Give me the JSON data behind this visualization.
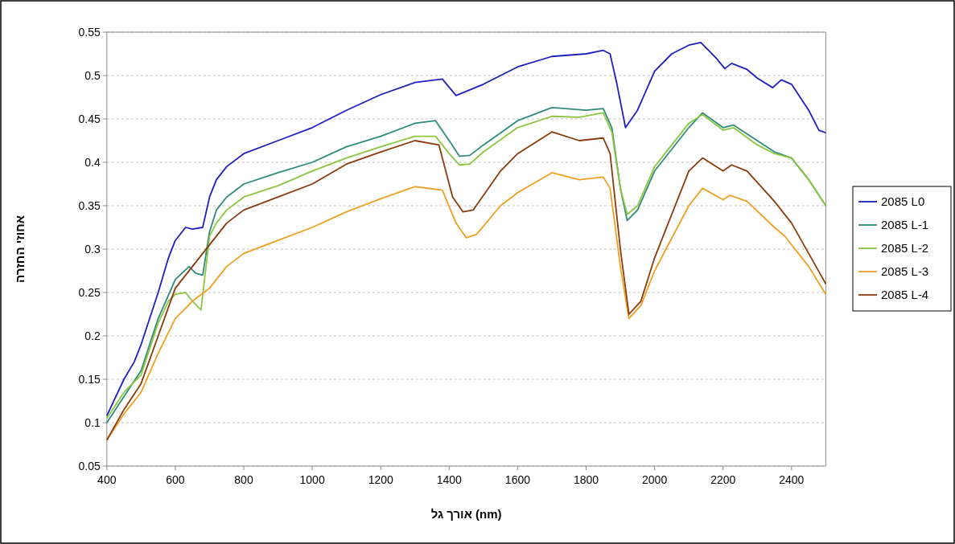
{
  "chart_data": {
    "type": "line",
    "xlabel": "אורך גל (nm)",
    "ylabel": "אחוזי החזרה",
    "xlim": [
      400,
      2500
    ],
    "xticks": [
      400,
      600,
      800,
      1000,
      1200,
      1400,
      1600,
      1800,
      2000,
      2200,
      2400
    ],
    "ylim": [
      0.05,
      0.55
    ],
    "yticks": [
      0.05,
      0.1,
      0.15,
      0.2,
      0.25,
      0.3,
      0.35,
      0.4,
      0.45,
      0.5,
      0.55
    ],
    "grid": "y",
    "legend": "right",
    "series": [
      {
        "name": "2085 L0",
        "color": "#1f1fbf",
        "x": [
          400,
          450,
          480,
          500,
          550,
          580,
          600,
          630,
          650,
          680,
          700,
          720,
          750,
          800,
          900,
          1000,
          1100,
          1200,
          1300,
          1380,
          1420,
          1500,
          1600,
          1700,
          1800,
          1850,
          1870,
          1890,
          1915,
          1950,
          2000,
          2050,
          2100,
          2135,
          2180,
          2205,
          2225,
          2270,
          2300,
          2345,
          2370,
          2400,
          2450,
          2480,
          2500
        ],
        "values": [
          0.108,
          0.15,
          0.17,
          0.19,
          0.25,
          0.29,
          0.31,
          0.325,
          0.323,
          0.325,
          0.36,
          0.38,
          0.395,
          0.41,
          0.425,
          0.44,
          0.46,
          0.478,
          0.492,
          0.496,
          0.477,
          0.49,
          0.51,
          0.522,
          0.525,
          0.529,
          0.525,
          0.49,
          0.44,
          0.46,
          0.505,
          0.525,
          0.535,
          0.538,
          0.52,
          0.508,
          0.514,
          0.507,
          0.497,
          0.486,
          0.495,
          0.49,
          0.46,
          0.437,
          0.434
        ]
      },
      {
        "name": "2085 L-1",
        "color": "#2e8b7a",
        "x": [
          400,
          450,
          500,
          550,
          600,
          640,
          660,
          680,
          700,
          720,
          750,
          800,
          900,
          1000,
          1100,
          1200,
          1300,
          1360,
          1400,
          1430,
          1460,
          1500,
          1600,
          1700,
          1800,
          1850,
          1875,
          1900,
          1920,
          1950,
          2000,
          2100,
          2140,
          2200,
          2230,
          2300,
          2350,
          2400,
          2450,
          2500
        ],
        "values": [
          0.1,
          0.13,
          0.16,
          0.22,
          0.265,
          0.28,
          0.272,
          0.27,
          0.32,
          0.345,
          0.36,
          0.375,
          0.388,
          0.4,
          0.418,
          0.43,
          0.445,
          0.448,
          0.425,
          0.407,
          0.408,
          0.42,
          0.448,
          0.463,
          0.46,
          0.462,
          0.44,
          0.37,
          0.333,
          0.345,
          0.39,
          0.44,
          0.457,
          0.44,
          0.443,
          0.425,
          0.412,
          0.405,
          0.38,
          0.35
        ]
      },
      {
        "name": "2085 L-2",
        "color": "#8cc63f",
        "x": [
          400,
          450,
          500,
          550,
          580,
          600,
          630,
          650,
          675,
          700,
          720,
          750,
          800,
          900,
          1000,
          1100,
          1200,
          1300,
          1360,
          1400,
          1430,
          1460,
          1500,
          1600,
          1700,
          1780,
          1850,
          1875,
          1900,
          1920,
          1950,
          2000,
          2100,
          2140,
          2200,
          2230,
          2300,
          2350,
          2400,
          2450,
          2500
        ],
        "values": [
          0.105,
          0.135,
          0.155,
          0.215,
          0.24,
          0.248,
          0.25,
          0.24,
          0.23,
          0.315,
          0.33,
          0.345,
          0.36,
          0.373,
          0.39,
          0.405,
          0.418,
          0.43,
          0.43,
          0.41,
          0.397,
          0.398,
          0.412,
          0.44,
          0.453,
          0.452,
          0.457,
          0.435,
          0.37,
          0.34,
          0.35,
          0.395,
          0.445,
          0.455,
          0.437,
          0.44,
          0.42,
          0.41,
          0.405,
          0.38,
          0.35
        ]
      },
      {
        "name": "2085 L-3",
        "color": "#f0a020",
        "x": [
          400,
          450,
          500,
          550,
          600,
          650,
          700,
          750,
          800,
          900,
          1000,
          1100,
          1200,
          1300,
          1380,
          1420,
          1450,
          1480,
          1550,
          1600,
          1700,
          1780,
          1850,
          1870,
          1900,
          1925,
          1960,
          2000,
          2100,
          2140,
          2200,
          2220,
          2270,
          2350,
          2380,
          2450,
          2500
        ],
        "values": [
          0.08,
          0.11,
          0.135,
          0.18,
          0.22,
          0.24,
          0.255,
          0.28,
          0.295,
          0.31,
          0.325,
          0.343,
          0.358,
          0.372,
          0.368,
          0.33,
          0.313,
          0.317,
          0.35,
          0.365,
          0.388,
          0.38,
          0.383,
          0.37,
          0.28,
          0.22,
          0.235,
          0.275,
          0.35,
          0.37,
          0.357,
          0.362,
          0.355,
          0.325,
          0.315,
          0.28,
          0.248
        ]
      },
      {
        "name": "2085 L-4",
        "color": "#8b3a0e",
        "x": [
          400,
          450,
          500,
          550,
          600,
          650,
          700,
          750,
          800,
          900,
          1000,
          1100,
          1200,
          1300,
          1370,
          1410,
          1440,
          1470,
          1550,
          1600,
          1700,
          1780,
          1850,
          1870,
          1900,
          1925,
          1960,
          2000,
          2100,
          2140,
          2200,
          2225,
          2270,
          2350,
          2400,
          2450,
          2500
        ],
        "values": [
          0.08,
          0.115,
          0.145,
          0.2,
          0.255,
          0.28,
          0.305,
          0.33,
          0.345,
          0.36,
          0.375,
          0.398,
          0.412,
          0.425,
          0.42,
          0.36,
          0.343,
          0.345,
          0.39,
          0.41,
          0.435,
          0.425,
          0.428,
          0.41,
          0.3,
          0.225,
          0.24,
          0.29,
          0.39,
          0.405,
          0.39,
          0.397,
          0.39,
          0.355,
          0.33,
          0.295,
          0.26
        ]
      }
    ]
  }
}
